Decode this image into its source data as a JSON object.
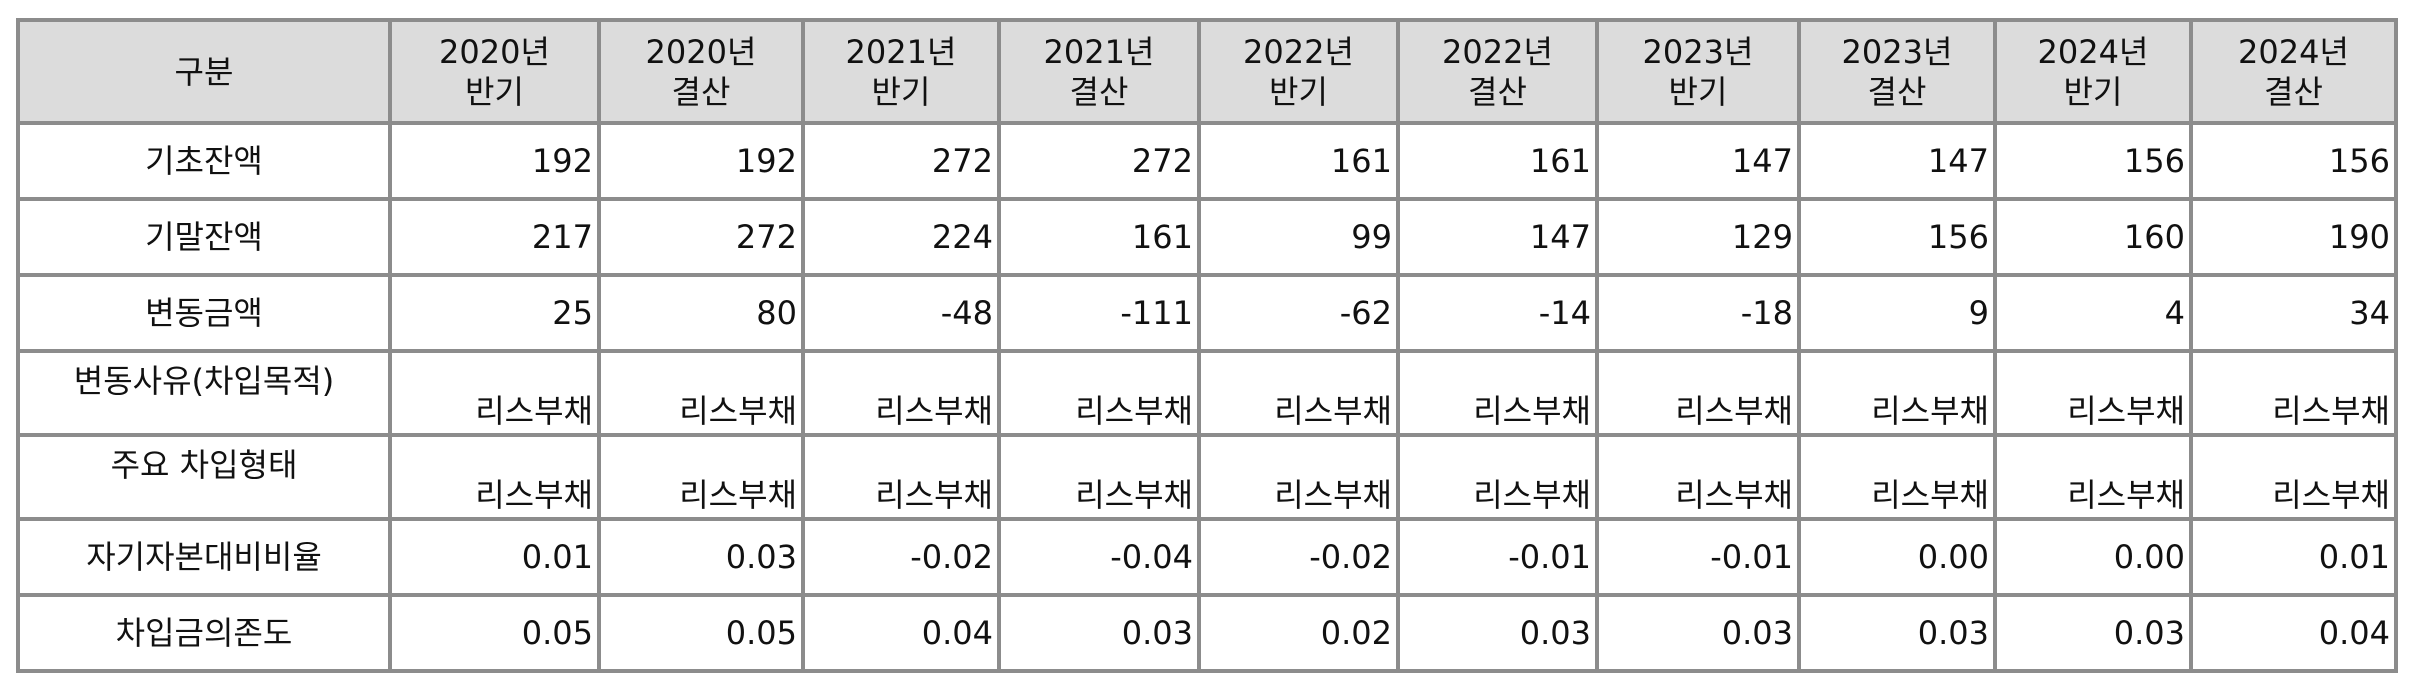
{
  "table": {
    "corner_label": "구분",
    "columns": [
      {
        "year": "2020년",
        "period": "반기"
      },
      {
        "year": "2020년",
        "period": "결산"
      },
      {
        "year": "2021년",
        "period": "반기"
      },
      {
        "year": "2021년",
        "period": "결산"
      },
      {
        "year": "2022년",
        "period": "반기"
      },
      {
        "year": "2022년",
        "period": "결산"
      },
      {
        "year": "2023년",
        "period": "반기"
      },
      {
        "year": "2023년",
        "period": "결산"
      },
      {
        "year": "2024년",
        "period": "반기"
      },
      {
        "year": "2024년",
        "period": "결산"
      }
    ],
    "rows": [
      {
        "label": "기초잔액",
        "values": [
          "192",
          "192",
          "272",
          "272",
          "161",
          "161",
          "147",
          "147",
          "156",
          "156"
        ]
      },
      {
        "label": "기말잔액",
        "values": [
          "217",
          "272",
          "224",
          "161",
          "99",
          "147",
          "129",
          "156",
          "160",
          "190"
        ]
      },
      {
        "label": "변동금액",
        "values": [
          "25",
          "80",
          "-48",
          "-111",
          "-62",
          "-14",
          "-18",
          "9",
          "4",
          "34"
        ]
      },
      {
        "label": "변동사유(차입목적)",
        "values": [
          "리스부채",
          "리스부채",
          "리스부채",
          "리스부채",
          "리스부채",
          "리스부채",
          "리스부채",
          "리스부채",
          "리스부채",
          "리스부채"
        ]
      },
      {
        "label": "주요 차입형태",
        "values": [
          "리스부채",
          "리스부채",
          "리스부채",
          "리스부채",
          "리스부채",
          "리스부채",
          "리스부채",
          "리스부채",
          "리스부채",
          "리스부채"
        ]
      },
      {
        "label": "자기자본대비비율",
        "values": [
          "0.01",
          "0.03",
          "-0.02",
          "-0.04",
          "-0.02",
          "-0.01",
          "-0.01",
          "0.00",
          "0.00",
          "0.01"
        ]
      },
      {
        "label": "차입금의존도",
        "values": [
          "0.05",
          "0.05",
          "0.04",
          "0.03",
          "0.02",
          "0.03",
          "0.03",
          "0.03",
          "0.03",
          "0.04"
        ]
      }
    ]
  }
}
